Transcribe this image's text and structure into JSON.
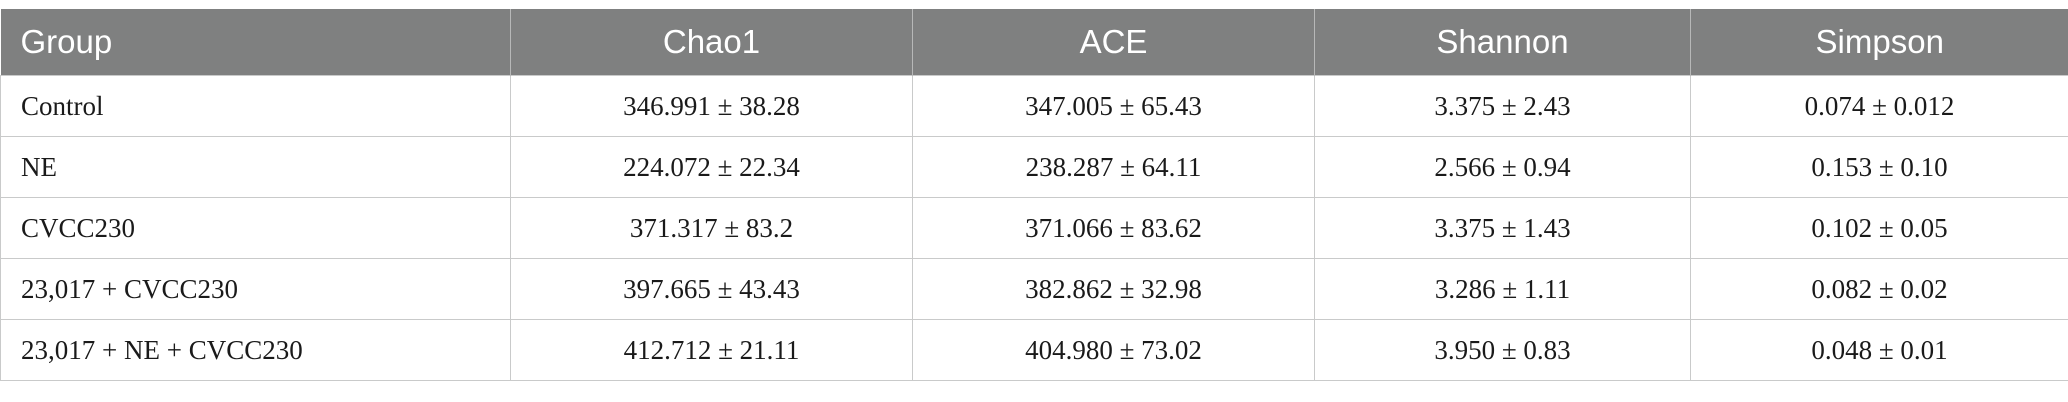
{
  "table": {
    "headers": [
      "Group",
      "Chao1",
      "ACE",
      "Shannon",
      "Simpson"
    ],
    "rows": [
      [
        "Control",
        "346.991 ± 38.28",
        "347.005 ± 65.43",
        "3.375 ± 2.43",
        "0.074 ± 0.012"
      ],
      [
        "NE",
        "224.072 ± 22.34",
        "238.287 ± 64.11",
        "2.566 ± 0.94",
        "0.153 ± 0.10"
      ],
      [
        "CVCC230",
        "371.317 ± 83.2",
        "371.066 ± 83.62",
        "3.375 ± 1.43",
        "0.102 ± 0.05"
      ],
      [
        "23,017 + CVCC230",
        "397.665 ± 43.43",
        "382.862 ± 32.98",
        "3.286 ± 1.11",
        "0.082 ± 0.02"
      ],
      [
        "23,017 + NE + CVCC230",
        "412.712 ± 21.11",
        "404.980 ± 73.02",
        "3.950 ± 0.83",
        "0.048 ± 0.01"
      ]
    ]
  }
}
